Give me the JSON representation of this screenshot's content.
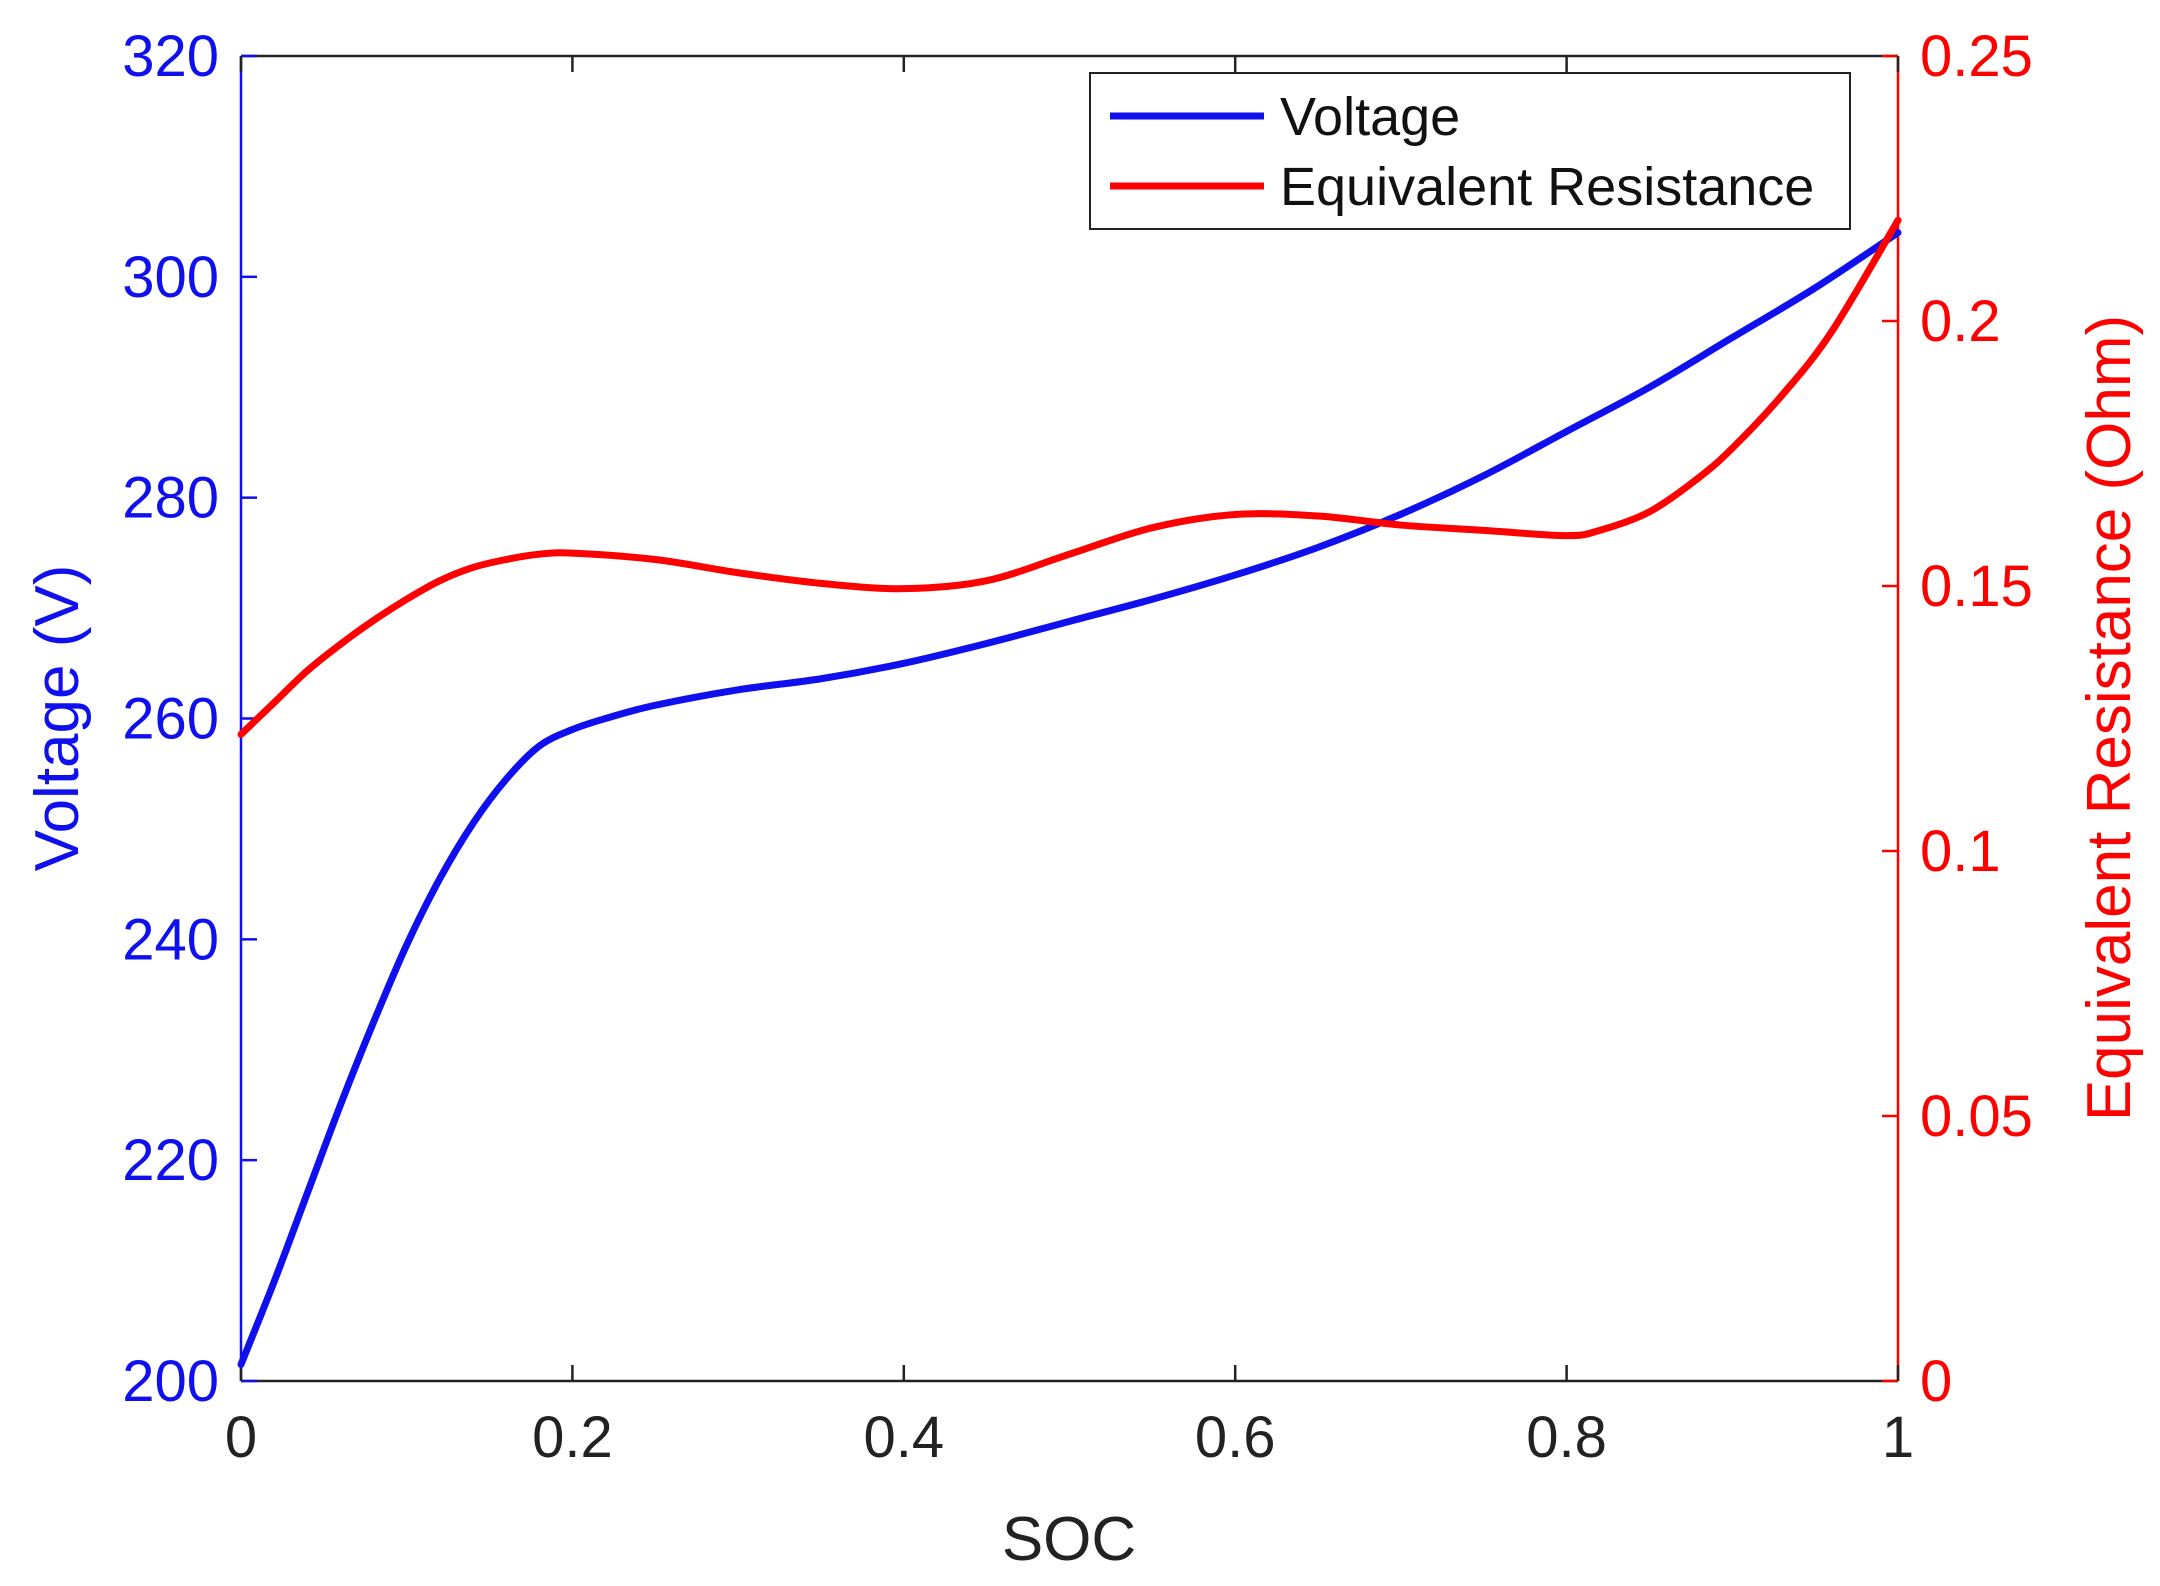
{
  "chart_data": {
    "type": "line",
    "title": "",
    "xlabel": "SOC",
    "ylabel_left": "Voltage (V)",
    "ylabel_right": "Equivalent Resistance (Ohm)",
    "xlim": [
      0,
      1
    ],
    "ylim_left": [
      200,
      320
    ],
    "ylim_right": [
      0,
      0.25
    ],
    "x_ticks": [
      "0",
      "0.2",
      "0.4",
      "0.6",
      "0.8",
      "1"
    ],
    "left_ticks": [
      "200",
      "220",
      "240",
      "260",
      "280",
      "300",
      "320"
    ],
    "right_ticks": [
      "0",
      "0.05",
      "0.1",
      "0.15",
      "0.2",
      "0.25"
    ],
    "grid": false,
    "legend_position": "top-right",
    "colors": {
      "voltage": "#1010ee",
      "resistance": "#ff0000",
      "axis": "#222222"
    },
    "series": [
      {
        "name": "Voltage",
        "axis": "left",
        "color": "#1010ee",
        "x": [
          0,
          0.02,
          0.04,
          0.06,
          0.08,
          0.1,
          0.12,
          0.14,
          0.16,
          0.18,
          0.2,
          0.22,
          0.25,
          0.3,
          0.35,
          0.4,
          0.45,
          0.5,
          0.55,
          0.6,
          0.65,
          0.7,
          0.75,
          0.8,
          0.85,
          0.9,
          0.95,
          1.0
        ],
        "values": [
          201.5,
          209,
          217,
          225,
          232.5,
          239.5,
          245.5,
          250.5,
          254.5,
          257.5,
          259,
          260,
          261.2,
          262.6,
          263.6,
          265,
          266.8,
          268.8,
          270.8,
          273,
          275.5,
          278.5,
          282,
          286,
          290,
          294.5,
          299,
          304
        ]
      },
      {
        "name": "Equivalent Resistance",
        "axis": "right",
        "color": "#ff0000",
        "x": [
          0,
          0.02,
          0.04,
          0.06,
          0.08,
          0.1,
          0.12,
          0.14,
          0.16,
          0.18,
          0.2,
          0.25,
          0.3,
          0.35,
          0.4,
          0.45,
          0.5,
          0.55,
          0.6,
          0.65,
          0.7,
          0.75,
          0.8,
          0.82,
          0.85,
          0.88,
          0.9,
          0.93,
          0.96,
          1.0
        ],
        "values": [
          0.122,
          0.128,
          0.134,
          0.139,
          0.1435,
          0.1475,
          0.151,
          0.1535,
          0.155,
          0.156,
          0.1562,
          0.155,
          0.1525,
          0.1505,
          0.1495,
          0.151,
          0.156,
          0.161,
          0.1635,
          0.1632,
          0.1615,
          0.1605,
          0.1595,
          0.1605,
          0.164,
          0.1705,
          0.176,
          0.186,
          0.198,
          0.219
        ]
      }
    ]
  }
}
